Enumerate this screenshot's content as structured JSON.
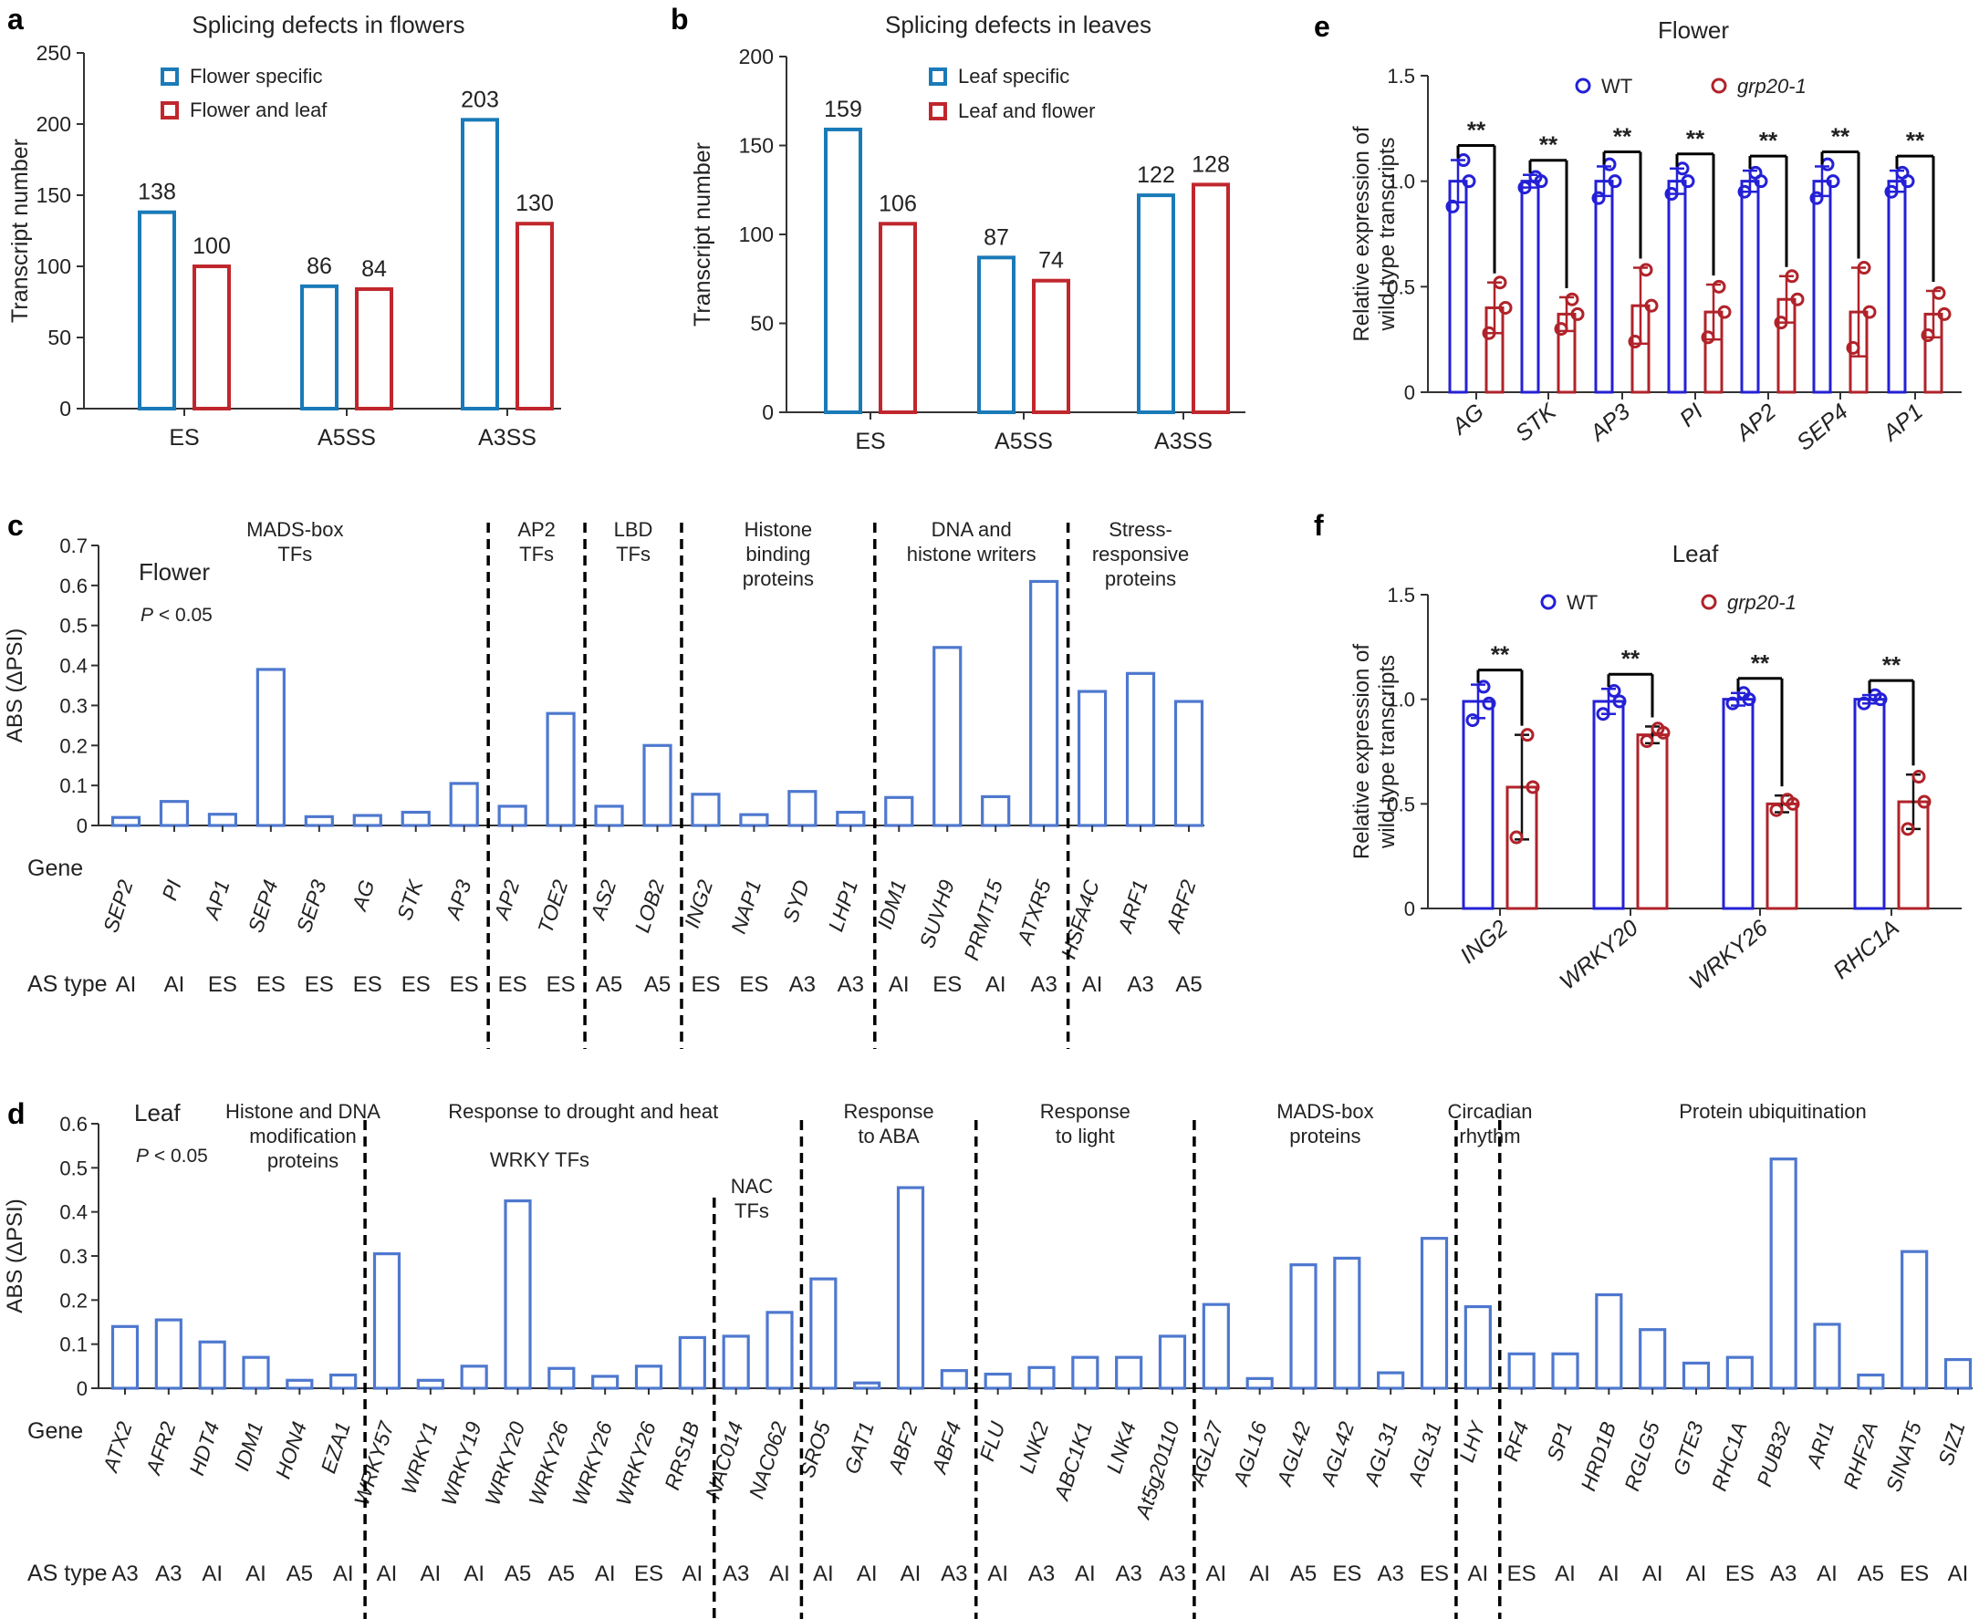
{
  "colors": {
    "blue": "#1a7ab8",
    "red": "#c0272d",
    "abs_blue": "#4e78cf",
    "wt_blue": "#2420d6",
    "mut_red": "#b0232a",
    "text": "#222222"
  },
  "panel_letters": {
    "a": "a",
    "b": "b",
    "c": "c",
    "d": "d",
    "e": "e",
    "f": "f"
  },
  "chart_data": [
    {
      "id": "a",
      "type": "bar",
      "title": "Splicing defects in flowers",
      "ylabel": "Transcript number",
      "xlabel": "",
      "ylim": [
        0,
        250
      ],
      "yticks": [
        0,
        50,
        100,
        150,
        200,
        250
      ],
      "categories": [
        "ES",
        "A5SS",
        "A3SS"
      ],
      "series": [
        {
          "name": "Flower specific",
          "color": "#1a7ab8",
          "values": [
            138,
            86,
            203
          ]
        },
        {
          "name": "Flower and leaf",
          "color": "#c0272d",
          "values": [
            100,
            84,
            130
          ]
        }
      ],
      "legend": "top-left",
      "grid": false
    },
    {
      "id": "b",
      "type": "bar",
      "title": "Splicing defects in leaves",
      "ylabel": "Transcript number",
      "xlabel": "",
      "ylim": [
        0,
        200
      ],
      "yticks": [
        0,
        50,
        100,
        150,
        200
      ],
      "categories": [
        "ES",
        "A5SS",
        "A3SS"
      ],
      "series": [
        {
          "name": "Leaf specific",
          "color": "#1a7ab8",
          "values": [
            159,
            87,
            122
          ]
        },
        {
          "name": "Leaf and flower",
          "color": "#c0272d",
          "values": [
            106,
            74,
            128
          ]
        }
      ],
      "legend": "top-center",
      "grid": false
    },
    {
      "id": "c",
      "type": "bar",
      "ylabel": "ABS (ΔPSI)",
      "ylim": [
        0,
        0.7
      ],
      "yticks": [
        "0",
        "0.1",
        "0.2",
        "0.3",
        "0.4",
        "0.5",
        "0.6",
        "0.7"
      ],
      "annotation_title": "Flower",
      "annotation_p": "P < 0.05",
      "row_label_gene": "Gene",
      "row_label_as": "AS type",
      "categories": [
        "SEP2",
        "PI",
        "AP1",
        "SEP4",
        "SEP3",
        "AG",
        "STK",
        "AP3",
        "AP2",
        "TOE2",
        "AS2",
        "LOB2",
        "ING2",
        "NAP1",
        "SYD",
        "LHP1",
        "IDM1",
        "SUVH9",
        "PRMT15",
        "ATXR5",
        "HSFA4C",
        "ARF1",
        "ARF2"
      ],
      "values": [
        0.02,
        0.06,
        0.028,
        0.39,
        0.022,
        0.025,
        0.033,
        0.105,
        0.048,
        0.28,
        0.048,
        0.2,
        0.078,
        0.027,
        0.085,
        0.033,
        0.07,
        0.445,
        0.072,
        0.61,
        0.335,
        0.38,
        0.31
      ],
      "as_types": [
        "AI",
        "AI",
        "ES",
        "ES",
        "ES",
        "ES",
        "ES",
        "ES",
        "ES",
        "ES",
        "A5",
        "A5",
        "ES",
        "ES",
        "A3",
        "A3",
        "AI",
        "ES",
        "AI",
        "A3",
        "AI",
        "A3",
        "A5"
      ],
      "groups": [
        {
          "label": [
            "MADS-box",
            "TFs"
          ],
          "start": 0,
          "end": 7
        },
        {
          "label": [
            "AP2",
            "TFs"
          ],
          "start": 8,
          "end": 9
        },
        {
          "label": [
            "LBD",
            "TFs"
          ],
          "start": 10,
          "end": 11
        },
        {
          "label": [
            "Histone",
            "binding",
            "proteins"
          ],
          "start": 12,
          "end": 15
        },
        {
          "label": [
            "DNA and",
            "histone writers"
          ],
          "start": 16,
          "end": 19
        },
        {
          "label": [
            "Stress-",
            "responsive",
            "proteins"
          ],
          "start": 20,
          "end": 22
        }
      ]
    },
    {
      "id": "d",
      "type": "bar",
      "ylabel": "ABS (ΔPSI)",
      "ylim": [
        0,
        0.6
      ],
      "yticks": [
        "0",
        "0.1",
        "0.2",
        "0.3",
        "0.4",
        "0.5",
        "0.6"
      ],
      "annotation_title": "Leaf",
      "annotation_p": "P < 0.05",
      "row_label_gene": "Gene",
      "row_label_as": "AS type",
      "categories": [
        "ATX2",
        "AFR2",
        "HDT4",
        "IDM1",
        "HON4",
        "EZA1",
        "WRKY57",
        "WRKY1",
        "WRKY19",
        "WRKY20",
        "WRKY26",
        "WRKY26",
        "WRKY26",
        "RRS1B",
        "NAC014",
        "NAC062",
        "SRO5",
        "GAT1",
        "ABF2",
        "ABF4",
        "FLU",
        "LNK2",
        "ABC1K1",
        "LNK4",
        "At5g20110",
        "AGL27",
        "AGL16",
        "AGL42",
        "AGL42",
        "AGL31",
        "AGL31",
        "LHY",
        "RF4",
        "SP1",
        "HRD1B",
        "RGLG5",
        "GTE3",
        "RHC1A",
        "PUB32",
        "ARI1",
        "RHF2A",
        "SINAT5",
        "SIZ1"
      ],
      "values": [
        0.14,
        0.155,
        0.105,
        0.07,
        0.018,
        0.03,
        0.305,
        0.018,
        0.05,
        0.425,
        0.045,
        0.027,
        0.05,
        0.115,
        0.118,
        0.172,
        0.248,
        0.012,
        0.455,
        0.04,
        0.032,
        0.047,
        0.07,
        0.07,
        0.118,
        0.19,
        0.022,
        0.28,
        0.295,
        0.035,
        0.34,
        0.185,
        0.078,
        0.078,
        0.212,
        0.133,
        0.057,
        0.07,
        0.52,
        0.145,
        0.03,
        0.31,
        0.065
      ],
      "as_types": [
        "A3",
        "A3",
        "AI",
        "AI",
        "A5",
        "AI",
        "AI",
        "AI",
        "AI",
        "A5",
        "A5",
        "AI",
        "ES",
        "AI",
        "A3",
        "AI",
        "AI",
        "AI",
        "AI",
        "A3",
        "AI",
        "A3",
        "AI",
        "A3",
        "A3",
        "AI",
        "AI",
        "A5",
        "ES",
        "A3",
        "ES",
        "AI",
        "ES",
        "AI",
        "AI",
        "AI",
        "AI",
        "ES",
        "A3",
        "AI",
        "A5",
        "ES",
        "AI"
      ],
      "groups": [
        {
          "label": [
            "Histone and DNA",
            "modification",
            "proteins"
          ],
          "start": 0,
          "end": 5
        },
        {
          "label": [
            "WRKY TFs"
          ],
          "start": 6,
          "end": 13
        },
        {
          "label": [
            "NAC",
            "TFs"
          ],
          "start": 14,
          "end": 15
        },
        {
          "label": [
            "Response",
            "to  ABA"
          ],
          "start": 16,
          "end": 19
        },
        {
          "label": [
            "Response",
            "to light"
          ],
          "start": 20,
          "end": 24
        },
        {
          "label": [
            "MADS-box",
            "proteins"
          ],
          "start": 25,
          "end": 30
        },
        {
          "label": [
            "Circadian",
            "rhythm"
          ],
          "start": 31,
          "end": 31
        },
        {
          "label": [
            "Protein ubiquitination"
          ],
          "start": 32,
          "end": 42
        }
      ],
      "supergroups": [
        {
          "label": "Response to drought and heat",
          "start": 6,
          "end": 15
        }
      ]
    },
    {
      "id": "e",
      "type": "bar",
      "title": "Flower",
      "ylabel": [
        "Relative expression of",
        "wild-type transcripts"
      ],
      "ylim": [
        0,
        1.5
      ],
      "yticks": [
        "0",
        "0.5",
        "1.0",
        "1.5"
      ],
      "categories": [
        "AG",
        "STK",
        "AP3",
        "PI",
        "AP2",
        "SEP4",
        "AP1"
      ],
      "series": [
        {
          "name": "WT",
          "color": "#2420d6",
          "values": [
            1.0,
            1.0,
            1.0,
            1.0,
            1.0,
            1.0,
            1.0
          ],
          "err": [
            0.1,
            0.03,
            0.07,
            0.06,
            0.05,
            0.07,
            0.05
          ],
          "points": [
            [
              0.88,
              1.0,
              1.1
            ],
            [
              0.97,
              1.0,
              1.02
            ],
            [
              0.92,
              1.0,
              1.08
            ],
            [
              0.94,
              1.0,
              1.06
            ],
            [
              0.95,
              1.0,
              1.04
            ],
            [
              0.92,
              1.0,
              1.08
            ],
            [
              0.95,
              1.0,
              1.04
            ]
          ]
        },
        {
          "name": "grp20-1",
          "color": "#b0232a",
          "values": [
            0.4,
            0.37,
            0.41,
            0.38,
            0.44,
            0.38,
            0.37
          ],
          "err": [
            0.12,
            0.08,
            0.18,
            0.13,
            0.11,
            0.21,
            0.11
          ],
          "points": [
            [
              0.28,
              0.4,
              0.52
            ],
            [
              0.3,
              0.37,
              0.44
            ],
            [
              0.24,
              0.41,
              0.58
            ],
            [
              0.26,
              0.38,
              0.5
            ],
            [
              0.33,
              0.44,
              0.55
            ],
            [
              0.21,
              0.38,
              0.59
            ],
            [
              0.27,
              0.37,
              0.47
            ]
          ]
        }
      ],
      "significance": [
        "**",
        "**",
        "**",
        "**",
        "**",
        "**",
        "**"
      ],
      "legend": "top"
    },
    {
      "id": "f",
      "type": "bar",
      "title": "Leaf",
      "ylabel": [
        "Relative expression of",
        "wild-type transcripts"
      ],
      "ylim": [
        0,
        1.5
      ],
      "yticks": [
        "0",
        "0.5",
        "1.0",
        "1.5"
      ],
      "categories": [
        "ING2",
        "WRKY20",
        "WRKY26",
        "RHC1A"
      ],
      "series": [
        {
          "name": "WT",
          "color": "#2420d6",
          "values": [
            0.99,
            0.99,
            1.0,
            1.0
          ],
          "err": [
            0.08,
            0.06,
            0.03,
            0.02
          ],
          "points": [
            [
              0.9,
              0.98,
              1.06
            ],
            [
              0.93,
              0.99,
              1.04
            ],
            [
              0.98,
              1.0,
              1.03
            ],
            [
              0.98,
              1.0,
              1.02
            ]
          ]
        },
        {
          "name": "grp20-1",
          "color": "#b0232a",
          "values": [
            0.58,
            0.83,
            0.5,
            0.51
          ],
          "err": [
            0.25,
            0.04,
            0.04,
            0.13
          ],
          "points": [
            [
              0.34,
              0.58,
              0.83
            ],
            [
              0.8,
              0.84,
              0.86
            ],
            [
              0.47,
              0.5,
              0.52
            ],
            [
              0.38,
              0.51,
              0.63
            ]
          ]
        }
      ],
      "significance": [
        "**",
        "**",
        "**",
        "**"
      ],
      "legend": "top"
    }
  ]
}
